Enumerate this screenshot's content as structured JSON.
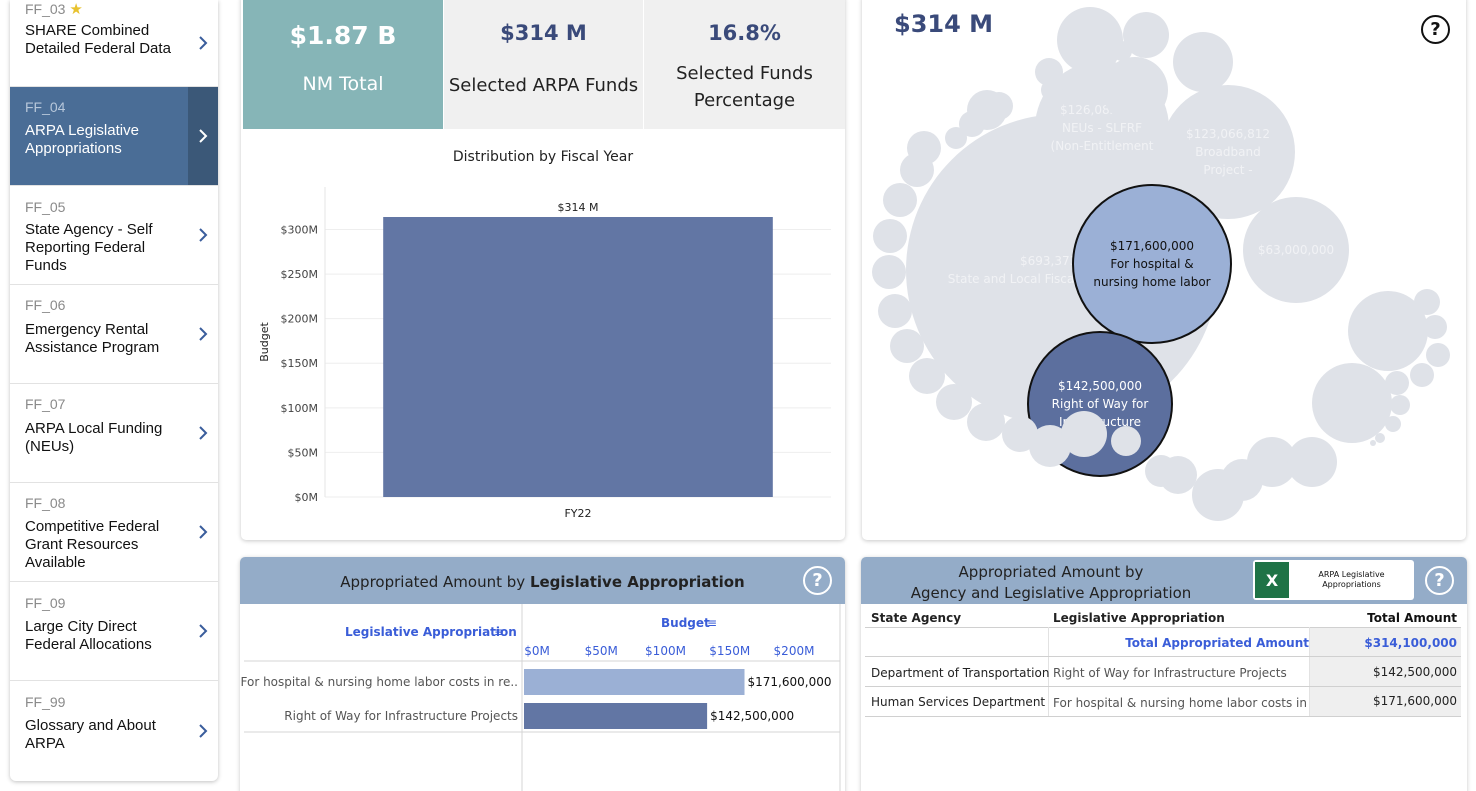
{
  "sidebar": {
    "items": [
      {
        "code": "FF_03",
        "title": "SHARE Combined Detailed Federal Data",
        "starred": true
      },
      {
        "code": "FF_04",
        "title": "ARPA Legislative Appropriations",
        "active": true
      },
      {
        "code": "FF_05",
        "title": "State Agency - Self Reporting Federal Funds"
      },
      {
        "code": "FF_06",
        "title": "Emergency Rental Assistance Program"
      },
      {
        "code": "FF_07",
        "title": "ARPA Local Funding (NEUs)"
      },
      {
        "code": "FF_08",
        "title": "Competitive Federal Grant Resources Available"
      },
      {
        "code": "FF_09",
        "title": "Large City Direct Federal Allocations"
      },
      {
        "code": "FF_99",
        "title": "Glossary and About ARPA"
      }
    ]
  },
  "kpis": {
    "nm_total": {
      "value": "$1.87 B",
      "label": "NM Total"
    },
    "selected_arpa": {
      "value": "$314 M",
      "label": "Selected ARPA Funds"
    },
    "selected_pct": {
      "value": "16.8%",
      "label_line1": "Selected Funds",
      "label_line2": "Percentage"
    }
  },
  "colors": {
    "accent_teal": "#86b5b7",
    "bar": "#6276a4",
    "bar_light": "#9bb0d5",
    "header": "#94acc8",
    "bubble": "#dfe2e8",
    "bubble_hi1": "#9bb0d6",
    "bubble_hi2": "#5c6f9e"
  },
  "chart_data": {
    "type": "bar",
    "title": "Distribution  by  Fiscal Year",
    "categories": [
      "FY22"
    ],
    "values": [
      314
    ],
    "value_labels": [
      "$314 M"
    ],
    "ylabel": "Budget",
    "ylim": [
      0,
      314
    ],
    "yticks": [
      0,
      50,
      100,
      150,
      200,
      250,
      300
    ],
    "ytick_labels": [
      "$0M",
      "$50M",
      "$100M",
      "$150M",
      "$200M",
      "$250M",
      "$300M"
    ]
  },
  "bubble": {
    "title": "$314 M",
    "labels": [
      {
        "amount": "$693,373,781",
        "name": "State and Local Fiscal Recovery Funds",
        "highlight": 0
      },
      {
        "amount": "$126,082,775",
        "name": "NEUs - SLFRF",
        "name2": "(Non-Entitlement",
        "highlight": 0
      },
      {
        "amount": "$123,066,812",
        "name": "Broadband",
        "name2": "Project -",
        "highlight": 0
      },
      {
        "amount": "$63,000,000",
        "highlight": 0
      },
      {
        "amount": "$171,600,000",
        "name": "For hospital &",
        "name2": "nursing home labor",
        "highlight": 1
      },
      {
        "amount": "$142,500,000",
        "name": "Right of Way for",
        "name2": "Infrastructure",
        "highlight": 2
      }
    ]
  },
  "appropriation_chart": {
    "title_prefix": "Appropriated Amount  by",
    "title_bold": "Legislative Appropriation",
    "col_label": "Legislative Appropriation",
    "budget_label": "Budget",
    "ticks": [
      "$0M",
      "$50M",
      "$100M",
      "$150M",
      "$200M"
    ],
    "rows": [
      {
        "name": "For hospital & nursing home labor costs in re..",
        "value": 171.6,
        "label": "$171,600,000"
      },
      {
        "name": "Right of Way for Infrastructure Projects",
        "value": 142.5,
        "label": "$142,500,000"
      }
    ]
  },
  "agency_table": {
    "title_line1": "Appropriated Amount by",
    "title_line2": "Agency and Legislative Appropriation",
    "download_label": "ARPA Legislative Appropriations",
    "excel_glyph": "X",
    "headers": {
      "agency": "State Agency",
      "appropriation": "Legislative Appropriation",
      "total": "Total Amount"
    },
    "total_row": {
      "label": "Total Appropriated Amount",
      "value": "$314,100,000"
    },
    "rows": [
      {
        "agency": "Department of Transportation",
        "appropriation": "Right of Way for Infrastructure Projects",
        "amount": "$142,500,000"
      },
      {
        "agency": "Human Services Department",
        "appropriation": "For hospital & nursing home labor costs in re..",
        "amount": "$171,600,000"
      }
    ]
  },
  "help_glyph": "?"
}
